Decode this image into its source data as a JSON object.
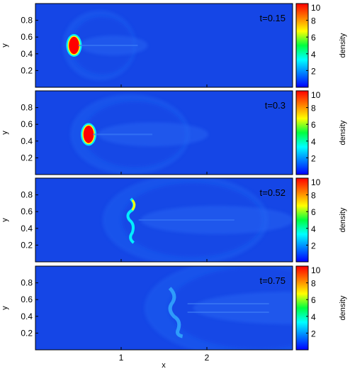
{
  "chart_data": {
    "type": "heatmap",
    "description_of_panels": "four stacked density snapshots",
    "xlabel": "x",
    "ylabel": "y",
    "x_ticks": [
      "1",
      "2"
    ],
    "y_ticks": [
      "0.2",
      "0.4",
      "0.6",
      "0.8"
    ],
    "xlim": [
      0,
      3
    ],
    "ylim": [
      0,
      1
    ],
    "colorbar": {
      "label": "density",
      "range": [
        0,
        10
      ],
      "ticks": [
        "2",
        "4",
        "6",
        "8",
        "10"
      ],
      "colors": [
        "#0000ff",
        "#0080ff",
        "#00ffff",
        "#00ff40",
        "#ffff00",
        "#ff8000",
        "#ff0000"
      ]
    },
    "panels": [
      {
        "time_label": "t=0.15",
        "t": 0.15,
        "cloud_x": 0.45,
        "cloud_y": 0.5
      },
      {
        "time_label": "t=0.3",
        "t": 0.3,
        "cloud_x": 0.62,
        "cloud_y": 0.48
      },
      {
        "time_label": "t=0.52",
        "t": 0.52,
        "cloud_x": 1.08,
        "cloud_y": 0.5
      },
      {
        "time_label": "t=0.75",
        "t": 0.75,
        "cloud_x": 1.65,
        "cloud_y": 0.5
      }
    ],
    "background_color": "#1546e6"
  }
}
